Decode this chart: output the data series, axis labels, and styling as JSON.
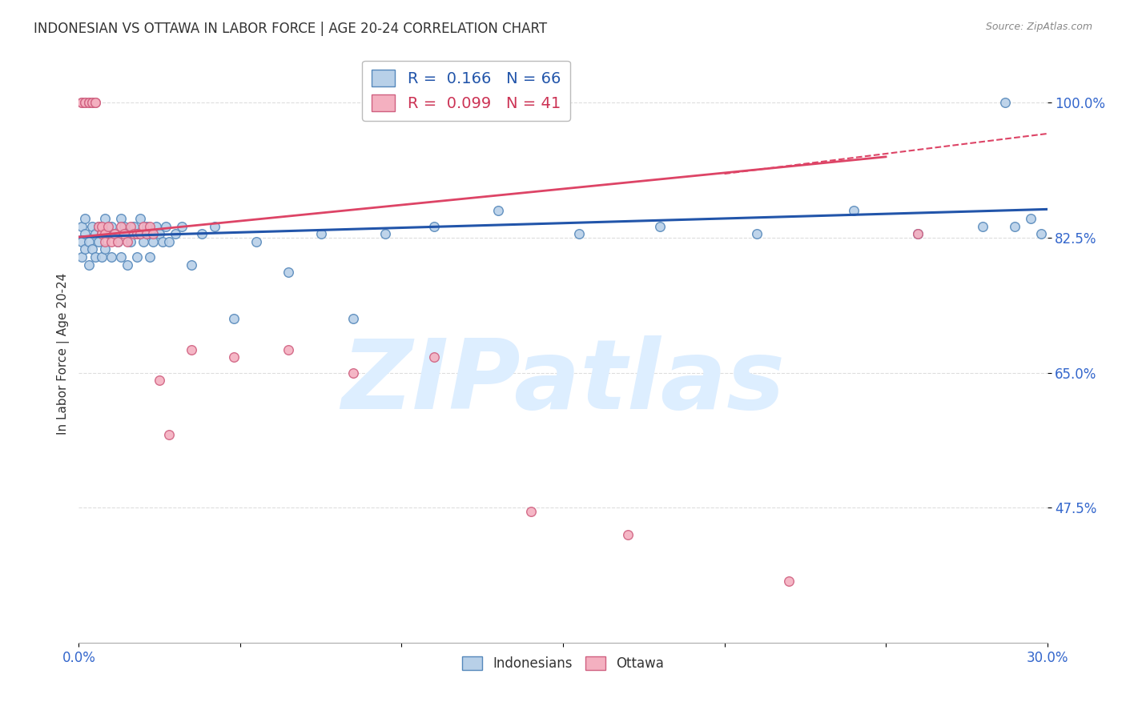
{
  "title": "INDONESIAN VS OTTAWA IN LABOR FORCE | AGE 20-24 CORRELATION CHART",
  "source": "Source: ZipAtlas.com",
  "ylabel": "In Labor Force | Age 20-24",
  "xlim": [
    0.0,
    0.3
  ],
  "ylim": [
    0.3,
    1.05
  ],
  "xtick_positions": [
    0.0,
    0.05,
    0.1,
    0.15,
    0.2,
    0.25,
    0.3
  ],
  "xticklabels": [
    "0.0%",
    "",
    "",
    "",
    "",
    "",
    "30.0%"
  ],
  "ytick_positions": [
    0.475,
    0.65,
    0.825,
    1.0
  ],
  "ytick_labels": [
    "47.5%",
    "65.0%",
    "82.5%",
    "100.0%"
  ],
  "indonesian_color": "#b8d0e8",
  "indonesian_edge": "#5588bb",
  "ottawa_color": "#f4b0c0",
  "ottawa_edge": "#d06080",
  "marker_size": 70,
  "blue_line_color": "#2255aa",
  "pink_line_color": "#dd4466",
  "watermark_text": "ZIPatlas",
  "watermark_color": "#ddeeff",
  "background_color": "#ffffff",
  "grid_color": "#dddddd",
  "indo_x": [
    0.001,
    0.001,
    0.001,
    0.002,
    0.002,
    0.002,
    0.003,
    0.003,
    0.004,
    0.004,
    0.005,
    0.005,
    0.006,
    0.006,
    0.007,
    0.007,
    0.008,
    0.008,
    0.009,
    0.01,
    0.01,
    0.011,
    0.012,
    0.013,
    0.013,
    0.014,
    0.015,
    0.015,
    0.016,
    0.017,
    0.018,
    0.018,
    0.019,
    0.02,
    0.021,
    0.022,
    0.022,
    0.023,
    0.024,
    0.025,
    0.026,
    0.027,
    0.028,
    0.03,
    0.032,
    0.035,
    0.038,
    0.042,
    0.048,
    0.055,
    0.065,
    0.075,
    0.085,
    0.095,
    0.11,
    0.13,
    0.155,
    0.18,
    0.21,
    0.24,
    0.26,
    0.28,
    0.29,
    0.295,
    0.298,
    0.287
  ],
  "indo_y": [
    0.84,
    0.82,
    0.8,
    0.83,
    0.81,
    0.85,
    0.82,
    0.79,
    0.84,
    0.81,
    0.83,
    0.8,
    0.84,
    0.82,
    0.83,
    0.8,
    0.85,
    0.81,
    0.83,
    0.84,
    0.8,
    0.83,
    0.82,
    0.85,
    0.8,
    0.84,
    0.83,
    0.79,
    0.82,
    0.84,
    0.83,
    0.8,
    0.85,
    0.82,
    0.84,
    0.83,
    0.8,
    0.82,
    0.84,
    0.83,
    0.82,
    0.84,
    0.82,
    0.83,
    0.84,
    0.79,
    0.83,
    0.84,
    0.72,
    0.82,
    0.78,
    0.83,
    0.72,
    0.83,
    0.84,
    0.86,
    0.83,
    0.84,
    0.83,
    0.86,
    0.83,
    0.84,
    0.84,
    0.85,
    0.83,
    1.0
  ],
  "ott_x": [
    0.001,
    0.001,
    0.002,
    0.002,
    0.003,
    0.003,
    0.004,
    0.004,
    0.005,
    0.005,
    0.006,
    0.007,
    0.007,
    0.008,
    0.008,
    0.009,
    0.01,
    0.011,
    0.012,
    0.013,
    0.014,
    0.015,
    0.016,
    0.017,
    0.018,
    0.019,
    0.02,
    0.021,
    0.022,
    0.023,
    0.025,
    0.028,
    0.035,
    0.048,
    0.065,
    0.085,
    0.11,
    0.14,
    0.17,
    0.22,
    0.26
  ],
  "ott_y": [
    1.0,
    1.0,
    1.0,
    1.0,
    1.0,
    1.0,
    1.0,
    1.0,
    1.0,
    1.0,
    0.84,
    0.83,
    0.84,
    0.83,
    0.82,
    0.84,
    0.82,
    0.83,
    0.82,
    0.84,
    0.83,
    0.82,
    0.84,
    0.83,
    0.83,
    0.83,
    0.84,
    0.83,
    0.84,
    0.83,
    0.64,
    0.57,
    0.68,
    0.67,
    0.68,
    0.65,
    0.67,
    0.47,
    0.44,
    0.38,
    0.83
  ],
  "blue_line_x": [
    0.0,
    0.3
  ],
  "blue_line_y": [
    0.826,
    0.862
  ],
  "pink_line_x": [
    0.0,
    0.25
  ],
  "pink_line_y": [
    0.826,
    0.93
  ]
}
